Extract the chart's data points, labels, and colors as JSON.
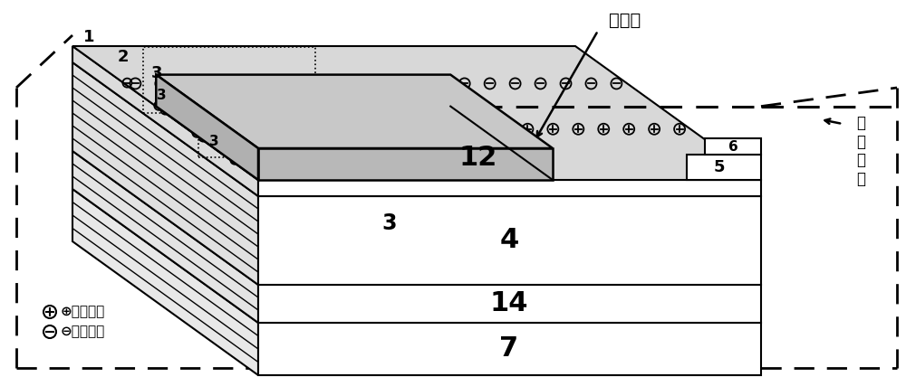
{
  "fig_width": 10.0,
  "fig_height": 4.17,
  "dpi": 100,
  "bg_color": "#ffffff",
  "label_1": "1",
  "label_2": "2",
  "label_3": "3",
  "label_4": "4",
  "label_5": "5",
  "label_6": "6",
  "label_7": "7",
  "label_12": "12",
  "label_14": "14",
  "label_yuanbaoqu": "元胞区",
  "label_feiyuanbaoqu": "非\n元\n胞\n区",
  "label_pos_charge": "⊕：正电荷",
  "label_neg_charge": "⊖：负电荷",
  "gray_slab": "#c8c8c8",
  "light_gray_face": "#d8d8d8",
  "white": "#ffffff",
  "black": "#000000"
}
